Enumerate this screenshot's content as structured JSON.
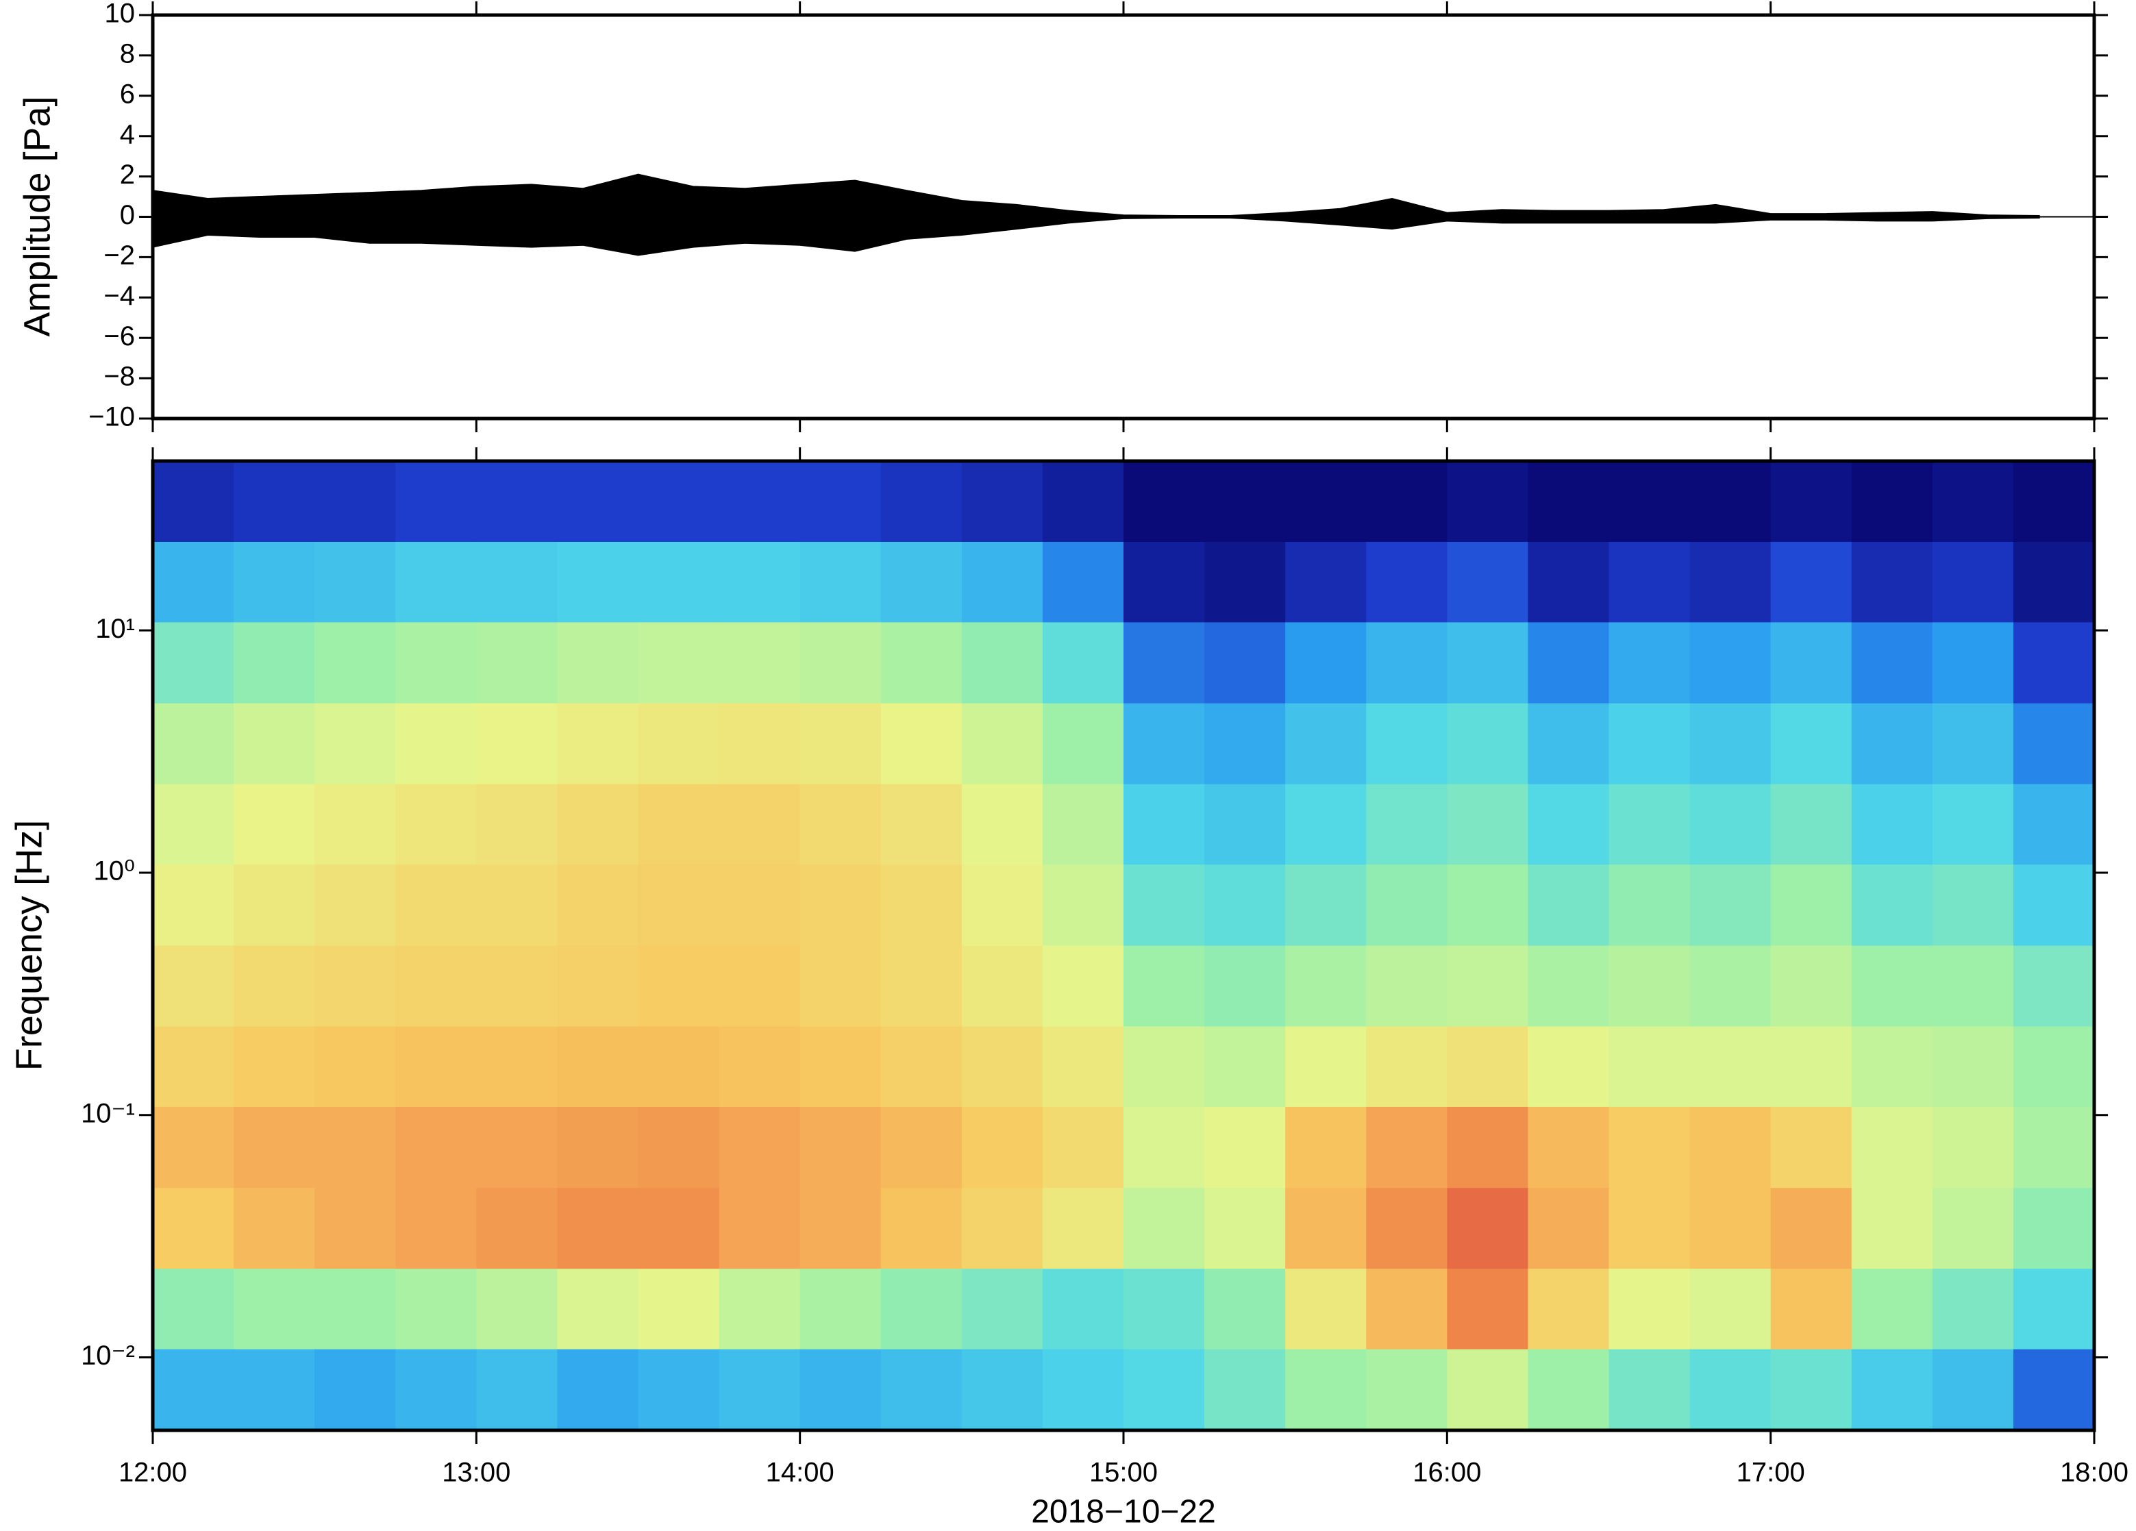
{
  "chart_data": [
    {
      "type": "area",
      "ylabel": "Amplitude [Pa]",
      "color": "#000000",
      "x": [
        12,
        12.17,
        12.33,
        12.5,
        12.67,
        12.83,
        13,
        13.17,
        13.33,
        13.5,
        13.67,
        13.83,
        14,
        14.17,
        14.33,
        14.5,
        14.67,
        14.83,
        15,
        15.17,
        15.33,
        15.5,
        15.67,
        15.83,
        16,
        16.17,
        16.33,
        16.5,
        16.67,
        16.83,
        17,
        17.17,
        17.33,
        17.5,
        17.67,
        17.83
      ],
      "upper": [
        1.3,
        0.9,
        1.0,
        1.1,
        1.2,
        1.3,
        1.5,
        1.6,
        1.4,
        2.1,
        1.5,
        1.4,
        1.6,
        1.8,
        1.3,
        0.8,
        0.6,
        0.3,
        0.08,
        0.05,
        0.05,
        0.2,
        0.4,
        0.9,
        0.2,
        0.35,
        0.3,
        0.3,
        0.35,
        0.6,
        0.15,
        0.15,
        0.2,
        0.25,
        0.08,
        0.05
      ],
      "lower": [
        -1.5,
        -0.9,
        -1.0,
        -1.0,
        -1.3,
        -1.3,
        -1.4,
        -1.5,
        -1.4,
        -1.9,
        -1.5,
        -1.3,
        -1.4,
        -1.7,
        -1.1,
        -0.9,
        -0.6,
        -0.3,
        -0.08,
        -0.05,
        -0.05,
        -0.2,
        -0.4,
        -0.6,
        -0.2,
        -0.3,
        -0.3,
        -0.3,
        -0.3,
        -0.3,
        -0.15,
        -0.15,
        -0.2,
        -0.2,
        -0.08,
        -0.05
      ],
      "xlim": [
        12,
        18
      ],
      "ylim": [
        -10,
        10
      ],
      "yticks": [
        {
          "value": -10,
          "label": "−10"
        },
        {
          "value": -8,
          "label": "−8"
        },
        {
          "value": -6,
          "label": "−6"
        },
        {
          "value": -4,
          "label": "−4"
        },
        {
          "value": -2,
          "label": "−2"
        },
        0,
        2,
        4,
        6,
        8,
        10
      ]
    },
    {
      "type": "heatmap",
      "ylabel": "Frequency [Hz]",
      "xlabel": "2018−10−22",
      "log_y": true,
      "xlim": [
        12,
        18
      ],
      "ylim": [
        0.005,
        50
      ],
      "xticks": [
        {
          "value": 12,
          "label": "12:00"
        },
        {
          "value": 13,
          "label": "13:00"
        },
        {
          "value": 14,
          "label": "14:00"
        },
        {
          "value": 15,
          "label": "15:00"
        },
        {
          "value": 16,
          "label": "16:00"
        },
        {
          "value": 17,
          "label": "17:00"
        },
        {
          "value": 18,
          "label": "18:00"
        }
      ],
      "yticks": [
        {
          "value": 0.01,
          "label": "10⁻²"
        },
        {
          "value": 0.1,
          "label": "10⁻¹"
        },
        {
          "value": 1,
          "label": "10⁰"
        },
        {
          "value": 10,
          "label": "10¹"
        }
      ],
      "colormap": [
        "#0a0a78",
        "#1f3fd1",
        "#2a9cf0",
        "#4fd8e8",
        "#9ef0a8",
        "#e8f58a",
        "#f8c860",
        "#f0884a",
        "#d83838"
      ],
      "x_edges": [
        12,
        12.25,
        12.5,
        12.75,
        13,
        13.25,
        13.5,
        13.75,
        14,
        14.25,
        14.5,
        14.75,
        15,
        15.25,
        15.5,
        15.75,
        16,
        16.25,
        16.5,
        16.75,
        17,
        17.25,
        17.5,
        17.75,
        18
      ],
      "y_edges": [
        50,
        23.2,
        10.8,
        5,
        2.32,
        1.08,
        0.5,
        0.232,
        0.108,
        0.05,
        0.0232,
        0.0108,
        0.005
      ],
      "values": [
        [
          0.08,
          0.1,
          0.1,
          0.12,
          0.12,
          0.12,
          0.12,
          0.12,
          0.12,
          0.1,
          0.08,
          0.05,
          0,
          0,
          0,
          0,
          0.02,
          0,
          0,
          0,
          0.02,
          0,
          0.02,
          0
        ],
        [
          0.3,
          0.32,
          0.33,
          0.35,
          0.35,
          0.36,
          0.36,
          0.36,
          0.35,
          0.33,
          0.3,
          0.22,
          0.05,
          0.03,
          0.08,
          0.12,
          0.15,
          0.06,
          0.1,
          0.08,
          0.14,
          0.08,
          0.1,
          0.03
        ],
        [
          0.45,
          0.48,
          0.5,
          0.52,
          0.53,
          0.55,
          0.56,
          0.56,
          0.55,
          0.52,
          0.48,
          0.4,
          0.2,
          0.18,
          0.25,
          0.3,
          0.32,
          0.22,
          0.28,
          0.26,
          0.3,
          0.22,
          0.25,
          0.12
        ],
        [
          0.55,
          0.58,
          0.6,
          0.62,
          0.63,
          0.65,
          0.66,
          0.67,
          0.66,
          0.63,
          0.58,
          0.5,
          0.3,
          0.28,
          0.33,
          0.38,
          0.4,
          0.32,
          0.36,
          0.34,
          0.38,
          0.3,
          0.32,
          0.22
        ],
        [
          0.6,
          0.63,
          0.65,
          0.67,
          0.68,
          0.7,
          0.72,
          0.72,
          0.7,
          0.68,
          0.62,
          0.55,
          0.36,
          0.34,
          0.38,
          0.43,
          0.45,
          0.38,
          0.42,
          0.4,
          0.44,
          0.36,
          0.38,
          0.3
        ],
        [
          0.64,
          0.66,
          0.68,
          0.7,
          0.7,
          0.72,
          0.73,
          0.73,
          0.72,
          0.7,
          0.64,
          0.58,
          0.42,
          0.4,
          0.44,
          0.48,
          0.5,
          0.44,
          0.48,
          0.46,
          0.5,
          0.42,
          0.44,
          0.36
        ],
        [
          0.68,
          0.7,
          0.71,
          0.72,
          0.72,
          0.73,
          0.74,
          0.74,
          0.72,
          0.7,
          0.66,
          0.62,
          0.5,
          0.48,
          0.52,
          0.55,
          0.56,
          0.52,
          0.54,
          0.52,
          0.55,
          0.5,
          0.5,
          0.45
        ],
        [
          0.72,
          0.74,
          0.75,
          0.76,
          0.76,
          0.77,
          0.77,
          0.76,
          0.75,
          0.73,
          0.7,
          0.66,
          0.58,
          0.56,
          0.62,
          0.66,
          0.68,
          0.62,
          0.6,
          0.6,
          0.6,
          0.56,
          0.55,
          0.5
        ],
        [
          0.78,
          0.8,
          0.8,
          0.82,
          0.82,
          0.83,
          0.84,
          0.82,
          0.8,
          0.78,
          0.74,
          0.7,
          0.6,
          0.62,
          0.76,
          0.82,
          0.86,
          0.78,
          0.74,
          0.76,
          0.72,
          0.6,
          0.58,
          0.52
        ],
        [
          0.74,
          0.78,
          0.8,
          0.82,
          0.84,
          0.86,
          0.86,
          0.82,
          0.8,
          0.76,
          0.72,
          0.66,
          0.56,
          0.6,
          0.78,
          0.86,
          0.92,
          0.8,
          0.74,
          0.76,
          0.8,
          0.6,
          0.56,
          0.48
        ],
        [
          0.48,
          0.5,
          0.5,
          0.52,
          0.55,
          0.6,
          0.62,
          0.56,
          0.52,
          0.48,
          0.45,
          0.4,
          0.42,
          0.48,
          0.66,
          0.78,
          0.88,
          0.72,
          0.62,
          0.6,
          0.76,
          0.5,
          0.45,
          0.38
        ],
        [
          0.3,
          0.3,
          0.28,
          0.3,
          0.32,
          0.28,
          0.3,
          0.32,
          0.3,
          0.32,
          0.34,
          0.36,
          0.38,
          0.44,
          0.5,
          0.52,
          0.58,
          0.5,
          0.44,
          0.4,
          0.42,
          0.35,
          0.32,
          0.18
        ]
      ]
    }
  ]
}
